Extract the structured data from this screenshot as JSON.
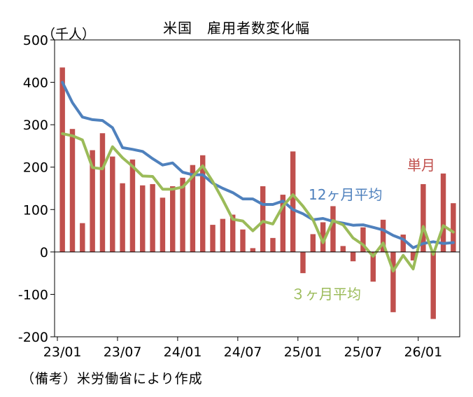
{
  "chart_data": {
    "type": "bar",
    "title": "米国　雇用者数変化幅",
    "ylabel": "（千人）",
    "source": "（備考）米労働省により作成",
    "ylim": [
      -200,
      500
    ],
    "yticks": [
      500,
      400,
      300,
      200,
      100,
      0,
      -100,
      -200
    ],
    "ytick_labels": [
      "500",
      "400",
      "300",
      "200",
      "100",
      "0",
      "-100",
      "-200"
    ],
    "xtick_labels": [
      "23/01",
      "23/07",
      "24/01",
      "24/07",
      "25/01",
      "25/07",
      "26/01"
    ],
    "xtick_index": [
      0,
      6,
      12,
      18,
      24,
      30,
      36
    ],
    "categories": [
      "23/01",
      "23/02",
      "23/03",
      "23/04",
      "23/05",
      "23/06",
      "23/07",
      "23/08",
      "23/09",
      "23/10",
      "23/11",
      "23/12",
      "24/01",
      "24/02",
      "24/03",
      "24/04",
      "24/05",
      "24/06",
      "24/07",
      "24/08",
      "24/09",
      "24/10",
      "24/11",
      "24/12",
      "25/01",
      "25/02",
      "25/03",
      "25/04",
      "25/05",
      "25/06",
      "25/07",
      "25/08",
      "25/09",
      "25/10",
      "25/11",
      "25/12",
      "26/01",
      "26/02",
      "26/03",
      "26/04"
    ],
    "series": [
      {
        "name": "単月",
        "kind": "bar",
        "color": "#c0504d",
        "values": [
          435,
          290,
          68,
          240,
          280,
          225,
          162,
          218,
          157,
          160,
          128,
          155,
          175,
          205,
          228,
          64,
          78,
          88,
          53,
          9,
          155,
          33,
          135,
          237,
          -50,
          42,
          70,
          108,
          14,
          -22,
          58,
          -70,
          76,
          -142,
          41,
          -20,
          160,
          -158,
          185,
          115
        ]
      },
      {
        "name": "12ヶ月平均",
        "kind": "line",
        "color": "#4f81bd",
        "values": [
          400,
          352,
          318,
          312,
          310,
          293,
          246,
          242,
          237,
          220,
          205,
          210,
          188,
          182,
          182,
          162,
          150,
          140,
          125,
          125,
          112,
          112,
          120,
          100,
          90,
          76,
          79,
          72,
          68,
          63,
          64,
          58,
          52,
          39,
          30,
          10,
          20,
          24,
          20,
          22
        ]
      },
      {
        "name": "３ヶ月平均",
        "kind": "line",
        "color": "#9bbb59",
        "values": [
          279,
          274,
          264,
          199,
          196,
          248,
          222,
          202,
          179,
          178,
          148,
          148,
          153,
          178,
          203,
          166,
          123,
          77,
          73,
          50,
          72,
          66,
          108,
          135,
          108,
          76,
          22,
          74,
          64,
          33,
          17,
          -10,
          21,
          -45,
          -8,
          -40,
          60,
          -6,
          62,
          47
        ]
      }
    ]
  }
}
